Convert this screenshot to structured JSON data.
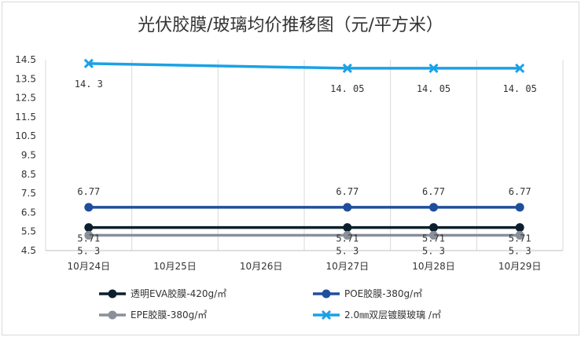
{
  "chart_data": {
    "type": "line",
    "title": "光伏胶膜/玻璃均价推移图（元/平方米）",
    "categories": [
      "10月24日",
      "10月25日",
      "10月26日",
      "10月27日",
      "10月28日",
      "10月29日"
    ],
    "ylim": [
      4.5,
      14.5
    ],
    "yticks": [
      "4.5",
      "5.5",
      "6.5",
      "7.5",
      "8.5",
      "9.5",
      "10.5",
      "11.5",
      "12.5",
      "13.5",
      "14.5"
    ],
    "grid": "vertical",
    "legend_position": "bottom",
    "series": [
      {
        "name": "透明EVA胶膜-420g/㎡",
        "color": "#0d1f2d",
        "marker": "circle",
        "values": [
          5.71,
          null,
          null,
          5.71,
          5.71,
          5.71
        ],
        "labels": [
          "5.71",
          "",
          "",
          "5.71",
          "5.71",
          "5.71"
        ]
      },
      {
        "name": "POE胶膜-380g/㎡",
        "color": "#1f4e9c",
        "marker": "circle",
        "values": [
          6.77,
          null,
          null,
          6.77,
          6.77,
          6.77
        ],
        "labels": [
          "6.77",
          "",
          "",
          "6.77",
          "6.77",
          "6.77"
        ]
      },
      {
        "name": "EPE胶膜-380g/㎡",
        "color": "#8a9099",
        "marker": "circle",
        "values": [
          5.3,
          null,
          null,
          5.3,
          5.3,
          5.3
        ],
        "labels": [
          "5. 3",
          "",
          "",
          "5. 3",
          "5. 3",
          "5. 3"
        ]
      },
      {
        "name": "2.0㎜双层镀膜玻璃 /㎡",
        "color": "#1ba1e6",
        "marker": "x",
        "values": [
          14.3,
          null,
          null,
          14.05,
          14.05,
          14.05
        ],
        "labels": [
          "14. 3",
          "",
          "",
          "14. 05",
          "14. 05",
          "14. 05"
        ]
      }
    ]
  }
}
